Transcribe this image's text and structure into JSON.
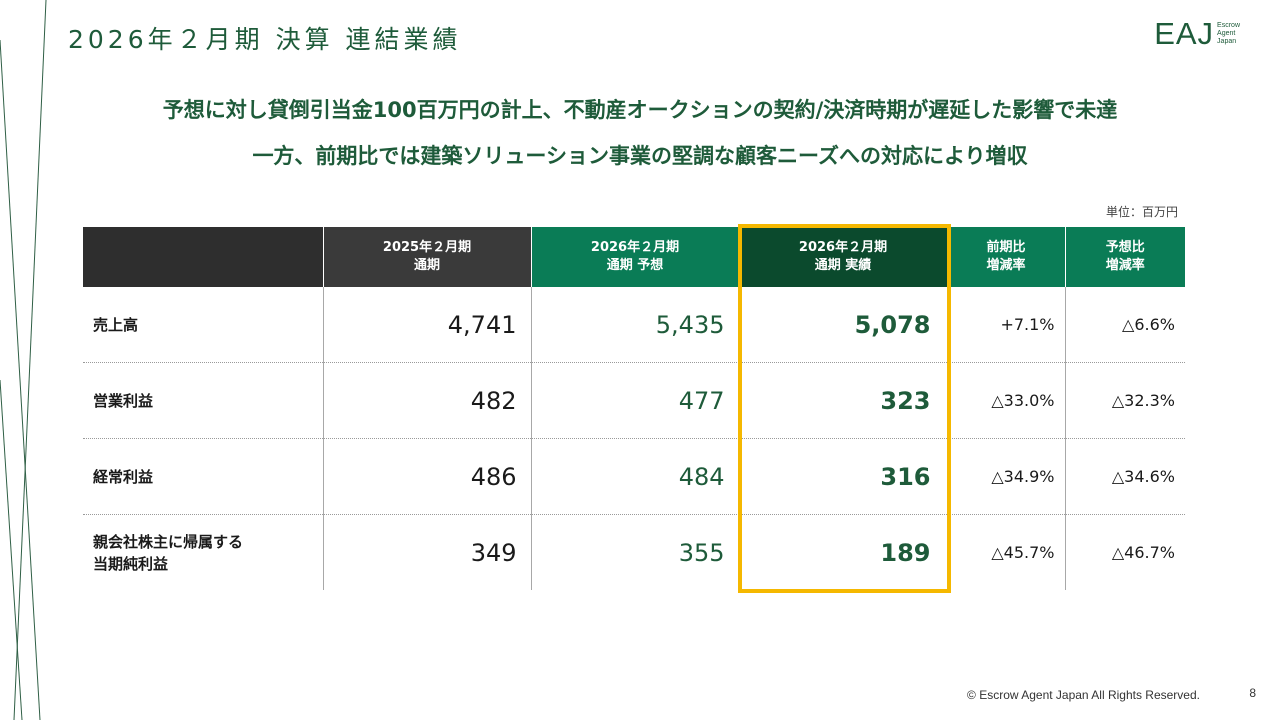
{
  "page_title": "2026年２月期 決算 連結業績",
  "logo": {
    "mark": "EAJ",
    "sub1": "Escrow",
    "sub2": "Agent",
    "sub3": "Japan"
  },
  "headline": {
    "line1": "予想に対し貸倒引当金100百万円の計上、不動産オークションの契約/決済時期が遅延した影響で未達",
    "line2": "一方、前期比では建築ソリューション事業の堅調な顧客ニーズへの対応により増収"
  },
  "unit": "単位：百万円",
  "table": {
    "headers": [
      {
        "line1": "",
        "line2": ""
      },
      {
        "line1": "2025年２月期",
        "line2": "通期"
      },
      {
        "line1": "2026年２月期",
        "line2": "通期 予想"
      },
      {
        "line1": "2026年２月期",
        "line2": "通期 実績"
      },
      {
        "line1": "前期比",
        "line2": "増減率"
      },
      {
        "line1": "予想比",
        "line2": "増減率"
      }
    ],
    "rows": [
      {
        "label1": "売上高",
        "label2": "",
        "fy2025": "4,741",
        "forecast": "5,435",
        "actual": "5,078",
        "yoy": "+7.1%",
        "vs_forecast": "△6.6%"
      },
      {
        "label1": "営業利益",
        "label2": "",
        "fy2025": "482",
        "forecast": "477",
        "actual": "323",
        "yoy": "△33.0%",
        "vs_forecast": "△32.3%"
      },
      {
        "label1": "経常利益",
        "label2": "",
        "fy2025": "486",
        "forecast": "484",
        "actual": "316",
        "yoy": "△34.9%",
        "vs_forecast": "△34.6%"
      },
      {
        "label1": "親会社株主に帰属する",
        "label2": "当期純利益",
        "fy2025": "349",
        "forecast": "355",
        "actual": "189",
        "yoy": "△45.7%",
        "vs_forecast": "△46.7%"
      }
    ]
  },
  "footer": "© Escrow Agent Japan All Rights Reserved.",
  "page_number": "8",
  "colors": {
    "brand_green": "#1e5b3a",
    "header_green": "#0a7c56",
    "header_dark_green": "#0b4a2d",
    "highlight": "#f5b800"
  }
}
